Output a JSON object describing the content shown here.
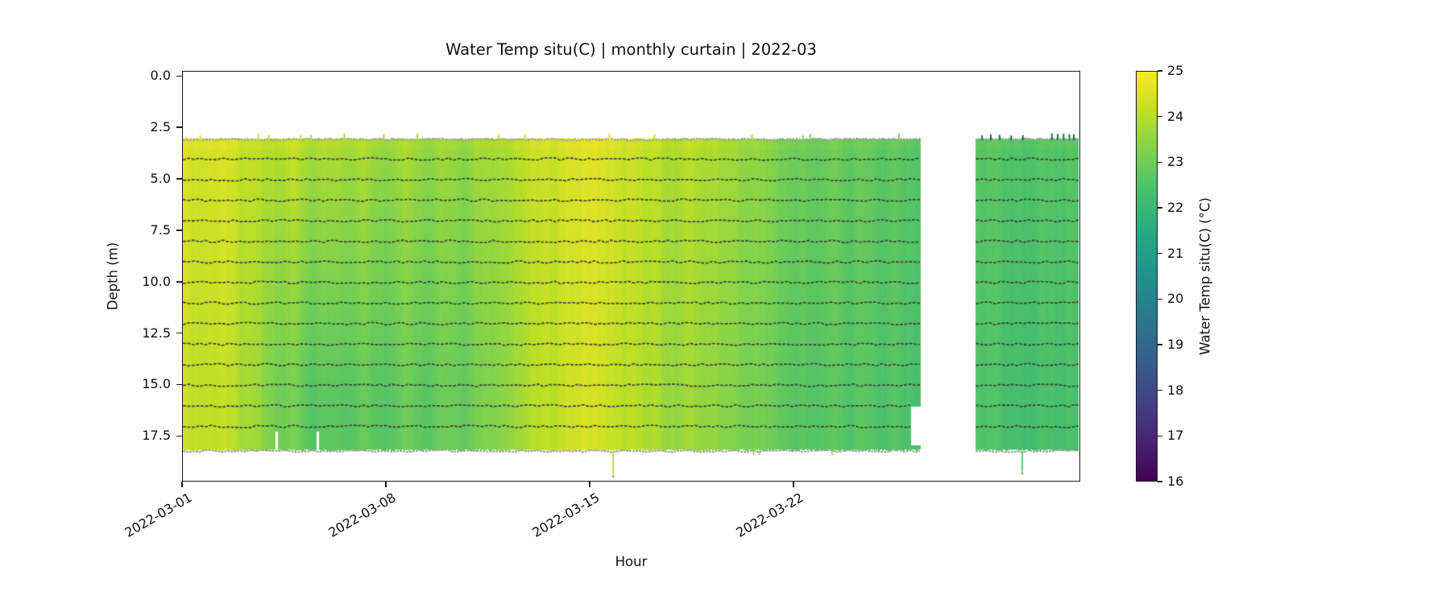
{
  "chart_data": {
    "type": "heatmap",
    "title": "Water Temp situ(C) | monthly curtain | 2022-03",
    "x_axis": {
      "label": "Hour",
      "start_date": "2022-03-01",
      "range_days": [
        0,
        30.85
      ],
      "tick_days": [
        0,
        7,
        14,
        21
      ],
      "tick_labels": [
        "2022-03-01",
        "2022-03-08",
        "2022-03-15",
        "2022-03-22"
      ]
    },
    "y_axis": {
      "label": "Depth (m)",
      "range": [
        -0.25,
        19.72
      ],
      "tick_values": [
        0.0,
        2.5,
        5.0,
        7.5,
        10.0,
        12.5,
        15.0,
        17.5
      ],
      "tick_labels": [
        "0.0",
        "2.5",
        "5.0",
        "7.5",
        "10.0",
        "12.5",
        "15.0",
        "17.5"
      ]
    },
    "colorbar": {
      "label": "Water Temp situ(C) (°C)",
      "colormap": "viridis",
      "range": [
        16,
        25
      ],
      "tick_values": [
        16,
        17,
        18,
        19,
        20,
        21,
        22,
        23,
        24,
        25
      ],
      "tick_labels": [
        "16",
        "17",
        "18",
        "19",
        "20",
        "21",
        "22",
        "23",
        "24",
        "25"
      ]
    },
    "curtain": {
      "depth_top": 3.05,
      "depth_bottom": 18.2,
      "trace_depths": [
        4,
        5,
        6,
        7,
        8,
        9,
        10,
        11,
        12,
        13,
        14,
        15,
        16,
        17
      ],
      "segments": [
        {
          "start_day": 0,
          "end_day": 25.35,
          "notch": {
            "after_day": 25.02,
            "depth_from": 16.1,
            "depth_to": 17.95
          }
        },
        {
          "start_day": 27.23,
          "end_day": 30.85
        }
      ],
      "surface_temp_series": {
        "days": [
          0,
          0.35,
          1.0,
          1.6,
          2.1,
          2.6,
          3.2,
          3.8,
          4.4,
          5.0,
          5.6,
          6.3,
          7.0,
          7.7,
          8.4,
          9.0,
          9.7,
          10.4,
          11.0,
          11.6,
          12.2,
          12.9,
          13.6,
          14.2,
          14.8,
          15.3,
          15.9,
          16.6,
          17.3,
          18.0,
          18.8,
          19.6,
          20.4,
          21.2,
          22.0,
          22.9,
          23.8,
          24.6,
          25.35,
          27.23,
          27.9,
          28.6,
          29.3,
          30.0,
          30.5,
          30.85
        ],
        "temps": [
          24.55,
          24.5,
          24.35,
          24.45,
          24.1,
          24.25,
          23.95,
          24.15,
          23.8,
          24.05,
          23.8,
          23.95,
          23.6,
          23.85,
          23.65,
          23.8,
          23.55,
          23.75,
          23.9,
          24.05,
          24.2,
          24.35,
          24.55,
          24.6,
          24.55,
          24.3,
          24.1,
          23.95,
          24.05,
          23.85,
          23.7,
          23.5,
          23.3,
          23.1,
          22.95,
          22.85,
          22.8,
          22.7,
          22.65,
          22.75,
          22.65,
          22.55,
          22.65,
          22.55,
          22.6,
          22.5
        ]
      },
      "bottom_minus_top_gradient_series": {
        "days": [
          0,
          1.5,
          2.6,
          3.3,
          4.2,
          5.2,
          6.2,
          7.2,
          8.2,
          9.2,
          10.2,
          11.5,
          13.0,
          14.5,
          16.0,
          17.5,
          19.0,
          21.0,
          23.0,
          25.0,
          27.3,
          29.0,
          30.85
        ],
        "delta": [
          -0.25,
          -0.3,
          -0.5,
          -0.95,
          -1.15,
          -1.2,
          -1.05,
          -0.9,
          -0.85,
          -0.7,
          -0.55,
          -0.35,
          -0.15,
          -0.15,
          -0.25,
          -0.35,
          -0.4,
          -0.35,
          -0.25,
          -0.2,
          -0.12,
          -0.18,
          -0.2
        ]
      },
      "data_gaps": [
        {
          "day": 3.24,
          "depth_from": 17.3
        },
        {
          "day": 4.65,
          "depth_from": 17.3
        }
      ],
      "downward_spikes": [
        {
          "day": 14.78,
          "to_depth": 19.35,
          "temp": 23.9
        },
        {
          "day": 28.83,
          "to_depth": 19.2,
          "temp": 22.6
        }
      ],
      "bottom_nubs": {
        "days": [
          19.6,
          19.8,
          22.3
        ],
        "temp": 23.6
      },
      "top_spikes_warm_days": [
        0.6,
        2.6,
        2.95,
        4.05,
        4.4,
        5.55,
        6.9,
        8.05,
        10.85,
        11.75,
        14.65,
        16.2,
        19.55,
        21.3,
        21.55,
        24.6
      ],
      "top_spikes_dark_days": [
        27.45,
        27.75,
        28.05,
        28.45,
        28.85,
        29.85,
        30.05,
        30.25,
        30.45,
        30.6
      ]
    },
    "colors": {
      "spine": "#1a1a1a",
      "trace_dark": "#3c463a",
      "trace_gray": "#9f9f9f",
      "top_spike_dark_green": "#147048"
    }
  }
}
